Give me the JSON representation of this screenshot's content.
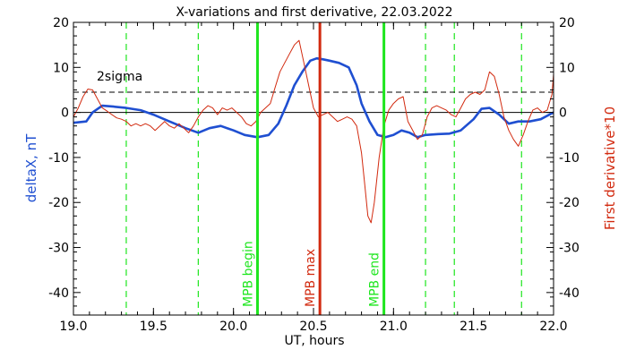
{
  "chart_data": {
    "type": "line",
    "title": "X-variations and first derivative, 22.03.2022",
    "xlabel": "UT, hours",
    "ylabel_left": "deltaX, nT",
    "ylabel_right": "First derivative*10",
    "xlim": [
      19.0,
      22.0
    ],
    "ylim": [
      -45,
      20
    ],
    "x_ticks": [
      "19.0",
      "19.5",
      "20.0",
      "20.5",
      "21.0",
      "21.5",
      "22.0"
    ],
    "x_tick_values": [
      19.0,
      19.5,
      20.0,
      20.5,
      21.0,
      21.5,
      22.0
    ],
    "y_ticks": [
      "20",
      "10",
      "0",
      "-10",
      "-20",
      "-30",
      "-40"
    ],
    "y_tick_values": [
      20,
      10,
      0,
      -10,
      -20,
      -30,
      -40
    ],
    "series": [
      {
        "name": "deltaX",
        "color": "#1f4fd1",
        "x": [
          19.0,
          19.08,
          19.12,
          19.18,
          19.25,
          19.33,
          19.42,
          19.5,
          19.6,
          19.7,
          19.78,
          19.85,
          19.92,
          20.0,
          20.07,
          20.15,
          20.22,
          20.28,
          20.33,
          20.38,
          20.43,
          20.48,
          20.52,
          20.56,
          20.6,
          20.66,
          20.72,
          20.77,
          20.8,
          20.85,
          20.9,
          20.95,
          21.0,
          21.05,
          21.1,
          21.15,
          21.2,
          21.28,
          21.35,
          21.42,
          21.5,
          21.55,
          21.6,
          21.66,
          21.72,
          21.78,
          21.85,
          21.92,
          22.0
        ],
        "values": [
          -2.3,
          -2.0,
          0.0,
          1.5,
          1.3,
          1.0,
          0.5,
          -0.5,
          -2.0,
          -3.5,
          -4.5,
          -3.5,
          -3.0,
          -4.0,
          -5.0,
          -5.5,
          -5.0,
          -2.5,
          1.5,
          6.0,
          9.0,
          11.5,
          12.0,
          11.8,
          11.5,
          11.0,
          10.0,
          6.0,
          2.0,
          -2.0,
          -5.0,
          -5.5,
          -5.0,
          -4.0,
          -4.5,
          -5.5,
          -5.0,
          -4.8,
          -4.7,
          -4.0,
          -1.5,
          0.8,
          1.0,
          -0.5,
          -2.5,
          -2.0,
          -2.0,
          -1.5,
          0.0
        ]
      },
      {
        "name": "First derivative*10",
        "color": "#d22a0f",
        "x": [
          19.0,
          19.03,
          19.06,
          19.09,
          19.12,
          19.15,
          19.18,
          19.21,
          19.24,
          19.27,
          19.3,
          19.33,
          19.36,
          19.39,
          19.42,
          19.45,
          19.48,
          19.51,
          19.54,
          19.57,
          19.6,
          19.63,
          19.66,
          19.69,
          19.72,
          19.75,
          19.78,
          19.81,
          19.84,
          19.87,
          19.9,
          19.93,
          19.96,
          19.99,
          20.02,
          20.05,
          20.08,
          20.11,
          20.14,
          20.17,
          20.2,
          20.23,
          20.26,
          20.29,
          20.32,
          20.35,
          20.38,
          20.41,
          20.44,
          20.47,
          20.5,
          20.53,
          20.56,
          20.59,
          20.62,
          20.65,
          20.68,
          20.71,
          20.74,
          20.77,
          20.8,
          20.82,
          20.84,
          20.86,
          20.88,
          20.91,
          20.94,
          20.97,
          21.0,
          21.03,
          21.06,
          21.09,
          21.12,
          21.15,
          21.18,
          21.21,
          21.24,
          21.27,
          21.3,
          21.33,
          21.36,
          21.39,
          21.42,
          21.45,
          21.48,
          21.51,
          21.54,
          21.57,
          21.6,
          21.63,
          21.66,
          21.69,
          21.72,
          21.75,
          21.78,
          21.81,
          21.84,
          21.87,
          21.9,
          21.93,
          21.96,
          21.99,
          22.0
        ],
        "values": [
          -1.0,
          1.0,
          3.5,
          5.2,
          5.0,
          3.0,
          1.0,
          0.3,
          -0.5,
          -1.2,
          -1.5,
          -2.0,
          -3.0,
          -2.5,
          -3.0,
          -2.5,
          -3.0,
          -4.0,
          -3.0,
          -2.0,
          -3.0,
          -3.5,
          -2.5,
          -3.5,
          -4.5,
          -3.0,
          -1.0,
          0.5,
          1.5,
          1.0,
          -0.5,
          1.0,
          0.5,
          1.0,
          0.0,
          -1.0,
          -2.5,
          -3.0,
          -2.0,
          0.0,
          1.0,
          2.0,
          5.5,
          9.0,
          11.0,
          13.0,
          15.0,
          16.0,
          11.0,
          6.0,
          1.0,
          -1.0,
          -0.5,
          0.0,
          -1.0,
          -2.0,
          -1.5,
          -1.0,
          -1.5,
          -3.0,
          -9.0,
          -16.0,
          -23.0,
          -24.5,
          -20.0,
          -10.0,
          -3.0,
          0.5,
          2.0,
          3.0,
          3.5,
          -2.0,
          -4.0,
          -6.0,
          -5.0,
          -1.0,
          1.0,
          1.5,
          1.0,
          0.5,
          -0.5,
          -1.0,
          1.0,
          3.0,
          4.0,
          4.5,
          4.0,
          5.0,
          9.0,
          8.0,
          4.0,
          -1.0,
          -4.0,
          -6.0,
          -7.5,
          -5.0,
          -2.0,
          0.5,
          1.0,
          0.0,
          0.5,
          4.0,
          8.5
        ]
      }
    ],
    "reference_lines": {
      "zero": 0,
      "sigma2": 4.5,
      "sigma2_label": "2sigma"
    },
    "vlines_dashed_green": [
      19.33,
      19.78,
      21.2,
      21.38,
      21.8
    ],
    "markers": [
      {
        "x": 20.15,
        "label": "MPB begin",
        "color": "#1ee61e"
      },
      {
        "x": 20.54,
        "label": "MPB max",
        "color": "#d22a0f"
      },
      {
        "x": 20.94,
        "label": "MPB end",
        "color": "#1ee61e"
      }
    ],
    "grid": false
  }
}
